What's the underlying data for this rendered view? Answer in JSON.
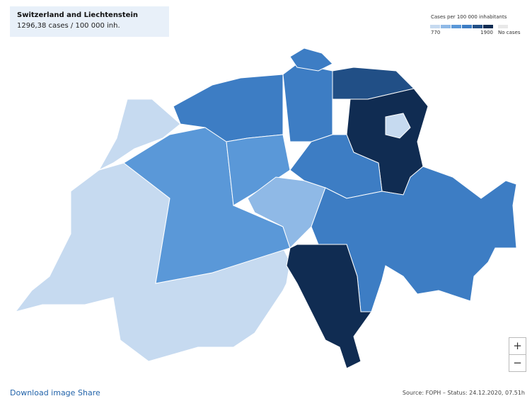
{
  "info": {
    "title": "Switzerland and Liechtenstein",
    "value": "1296,38 cases / 100 000 inh."
  },
  "legend": {
    "title": "Cases per 100 000 inhabitants",
    "min": "770",
    "max": "1900",
    "no_cases": "No cases",
    "colors": [
      "#c6daf0",
      "#8fb9e6",
      "#5a98d8",
      "#3d7dc4",
      "#214f86",
      "#102c52"
    ],
    "no_cases_color": "#e8e8e8"
  },
  "zoom": {
    "in": "+",
    "out": "−"
  },
  "footer": {
    "download": "Download image",
    "share": "Share",
    "source": "Source: FOPH – Status: 24.12.2020, 07.51h"
  }
}
